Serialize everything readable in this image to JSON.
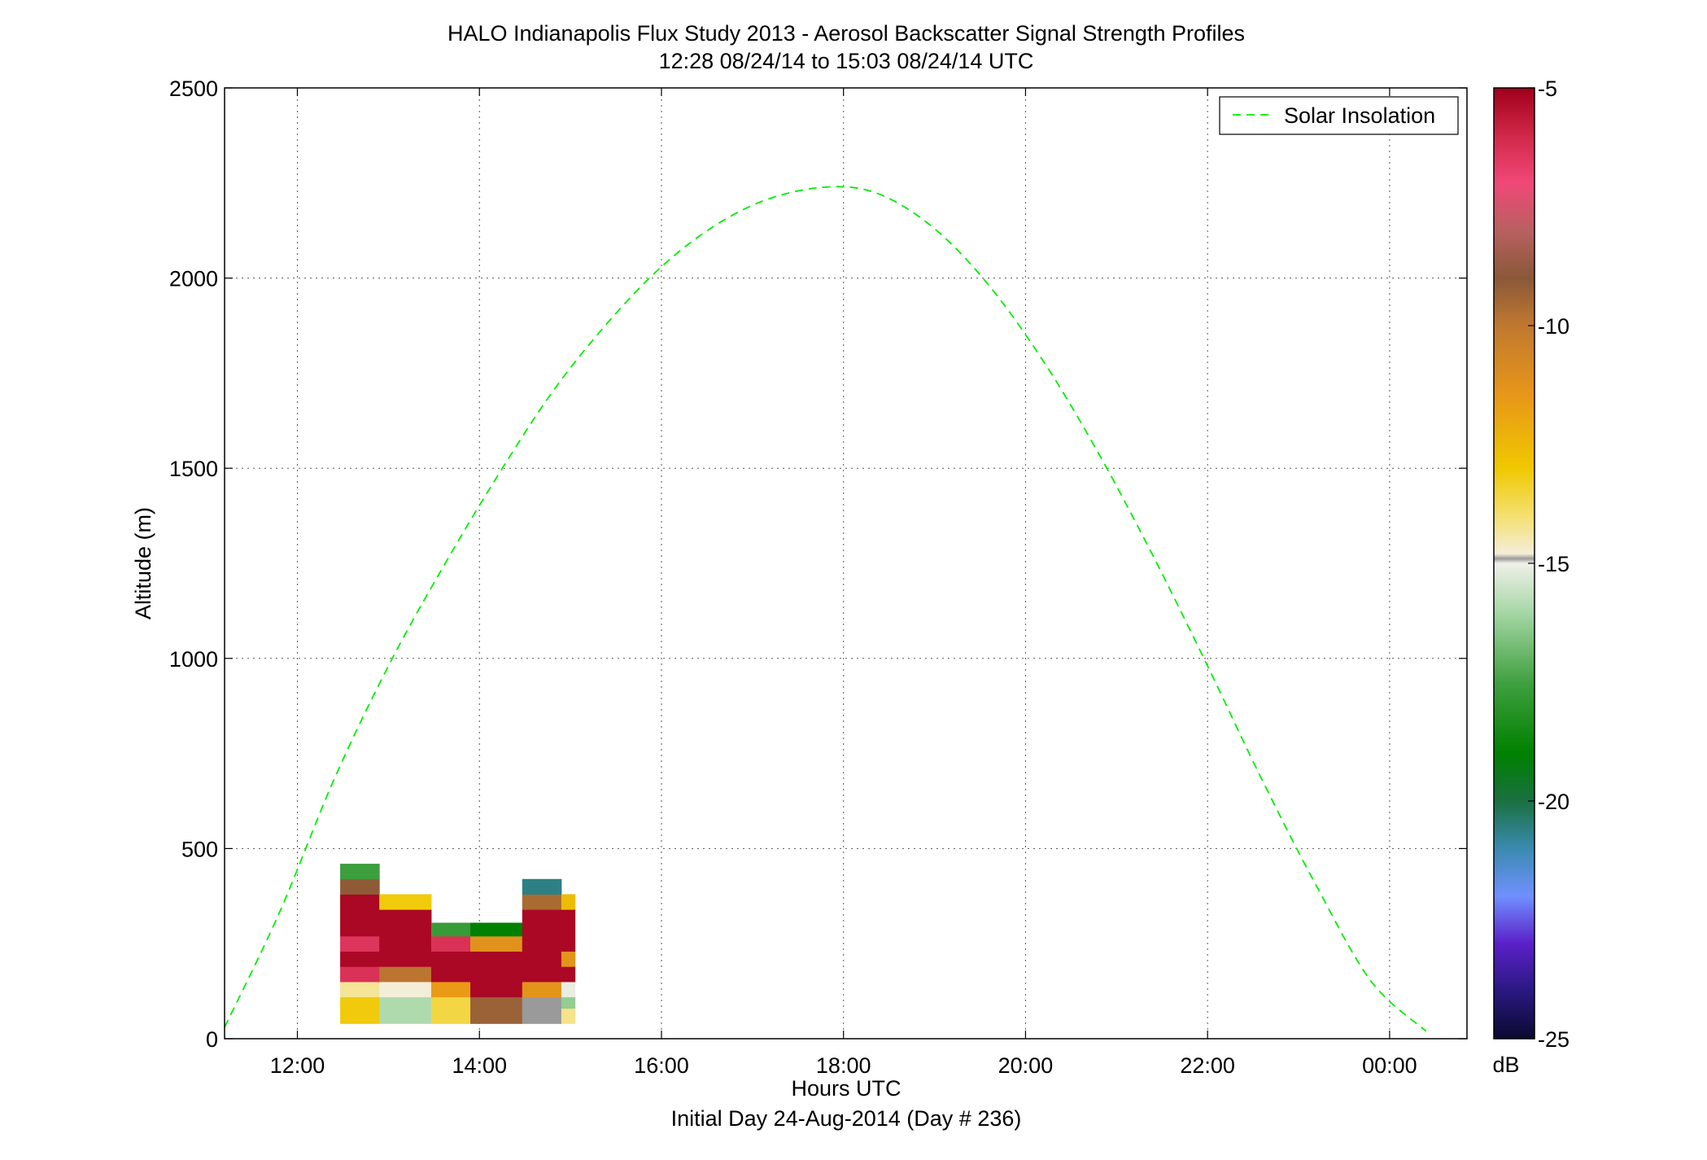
{
  "chart_data": {
    "type": "heatmap",
    "title": "HALO Indianapolis Flux Study 2013 - Aerosol Backscatter Signal Strength Profiles",
    "subtitle": "12:28 08/24/14 to 15:03 08/24/14  UTC",
    "xlabel": "Hours UTC",
    "xlabel2": "Initial Day 24-Aug-2014 (Day # 236)",
    "ylabel": "Altitude (m)",
    "xlim": [
      11.2,
      24.85
    ],
    "ylim": [
      0,
      2500
    ],
    "x_ticks": [
      12,
      14,
      16,
      18,
      20,
      22,
      24
    ],
    "x_tick_labels": [
      "12:00",
      "14:00",
      "16:00",
      "18:00",
      "20:00",
      "22:00",
      "00:00"
    ],
    "y_ticks": [
      0,
      500,
      1000,
      1500,
      2000,
      2500
    ],
    "y_tick_labels": [
      "0",
      "500",
      "1000",
      "1500",
      "2000",
      "2500"
    ],
    "grid": true,
    "legend": {
      "placement": "top-right",
      "entries": [
        "Solar Insolation"
      ]
    },
    "colorbar": {
      "label": "dB",
      "range": [
        -25,
        -5
      ],
      "ticks": [
        -5,
        -10,
        -15,
        -20,
        -25
      ],
      "tick_labels": [
        "-5",
        "-10",
        "-15",
        "-20",
        "-25"
      ],
      "stops": [
        {
          "v": -25,
          "c": "#0a0a30"
        },
        {
          "v": -24,
          "c": "#2a1880"
        },
        {
          "v": -23,
          "c": "#5a20c8"
        },
        {
          "v": -22,
          "c": "#7090ff"
        },
        {
          "v": -21,
          "c": "#3a8ab0"
        },
        {
          "v": -20,
          "c": "#1a7040"
        },
        {
          "v": -19,
          "c": "#008000"
        },
        {
          "v": -17.5,
          "c": "#40a040"
        },
        {
          "v": -16,
          "c": "#a8d8a8"
        },
        {
          "v": -15,
          "c": "#f0f0e8"
        },
        {
          "v": -14.9,
          "c": "#9a9a9a"
        },
        {
          "v": -14.8,
          "c": "#f4eed8"
        },
        {
          "v": -14,
          "c": "#f4e070"
        },
        {
          "v": -13,
          "c": "#f0c800"
        },
        {
          "v": -11.5,
          "c": "#e89818"
        },
        {
          "v": -10,
          "c": "#c07830"
        },
        {
          "v": -9,
          "c": "#8a5838"
        },
        {
          "v": -8,
          "c": "#b86060"
        },
        {
          "v": -7,
          "c": "#f04878"
        },
        {
          "v": -6,
          "c": "#d02848"
        },
        {
          "v": -5,
          "c": "#a0001c"
        }
      ]
    },
    "series": [
      {
        "name": "Solar Insolation",
        "type": "line",
        "style": "dashed",
        "color": "#00ee00",
        "x": [
          11.2,
          11.8,
          12.4,
          13.0,
          13.6,
          14.2,
          14.8,
          15.4,
          16.0,
          16.6,
          17.2,
          17.85,
          18.4,
          19.0,
          19.6,
          20.2,
          20.8,
          21.4,
          22.0,
          22.6,
          23.2,
          23.8,
          24.4
        ],
        "y": [
          30,
          330,
          680,
          980,
          1240,
          1480,
          1700,
          1880,
          2030,
          2140,
          2210,
          2240,
          2220,
          2130,
          1980,
          1780,
          1540,
          1270,
          980,
          680,
          400,
          150,
          20
        ]
      }
    ],
    "cells": [
      {
        "x0": 12.47,
        "x1": 12.9,
        "y0": 40,
        "y1": 110,
        "v": -13.1
      },
      {
        "x0": 12.47,
        "x1": 12.9,
        "y0": 110,
        "y1": 150,
        "v": -14.3
      },
      {
        "x0": 12.47,
        "x1": 12.9,
        "y0": 150,
        "y1": 190,
        "v": -6.3
      },
      {
        "x0": 12.47,
        "x1": 12.9,
        "y0": 190,
        "y1": 230,
        "v": -5.2
      },
      {
        "x0": 12.47,
        "x1": 12.9,
        "y0": 230,
        "y1": 270,
        "v": -6.4
      },
      {
        "x0": 12.47,
        "x1": 12.9,
        "y0": 270,
        "y1": 380,
        "v": -5.2
      },
      {
        "x0": 12.47,
        "x1": 12.9,
        "y0": 380,
        "y1": 420,
        "v": -9.1
      },
      {
        "x0": 12.47,
        "x1": 12.9,
        "y0": 420,
        "y1": 460,
        "v": -17.6
      },
      {
        "x0": 12.9,
        "x1": 13.47,
        "y0": 40,
        "y1": 110,
        "v": -15.9
      },
      {
        "x0": 12.9,
        "x1": 13.47,
        "y0": 110,
        "y1": 150,
        "v": -14.8
      },
      {
        "x0": 12.9,
        "x1": 13.47,
        "y0": 150,
        "y1": 190,
        "v": -9.9
      },
      {
        "x0": 12.9,
        "x1": 13.47,
        "y0": 190,
        "y1": 340,
        "v": -5.2
      },
      {
        "x0": 12.9,
        "x1": 13.47,
        "y0": 340,
        "y1": 380,
        "v": -13.1
      },
      {
        "x0": 13.47,
        "x1": 13.9,
        "y0": 40,
        "y1": 110,
        "v": -13.6
      },
      {
        "x0": 13.47,
        "x1": 13.9,
        "y0": 110,
        "y1": 150,
        "v": -11.6
      },
      {
        "x0": 13.47,
        "x1": 13.9,
        "y0": 150,
        "y1": 230,
        "v": -5.2
      },
      {
        "x0": 13.47,
        "x1": 13.9,
        "y0": 230,
        "y1": 270,
        "v": -6.3
      },
      {
        "x0": 13.47,
        "x1": 13.9,
        "y0": 270,
        "y1": 305,
        "v": -17.7
      },
      {
        "x0": 13.9,
        "x1": 14.47,
        "y0": 40,
        "y1": 110,
        "v": -9.3
      },
      {
        "x0": 13.9,
        "x1": 14.47,
        "y0": 110,
        "y1": 230,
        "v": -5.2
      },
      {
        "x0": 13.9,
        "x1": 14.47,
        "y0": 230,
        "y1": 270,
        "v": -11.2
      },
      {
        "x0": 13.9,
        "x1": 14.47,
        "y0": 270,
        "y1": 305,
        "v": -19.0
      },
      {
        "x0": 14.47,
        "x1": 14.9,
        "y0": 40,
        "y1": 110,
        "v": -14.9
      },
      {
        "x0": 14.47,
        "x1": 14.9,
        "y0": 110,
        "y1": 150,
        "v": -11.3
      },
      {
        "x0": 14.47,
        "x1": 14.9,
        "y0": 150,
        "y1": 340,
        "v": -5.2
      },
      {
        "x0": 14.47,
        "x1": 14.9,
        "y0": 340,
        "y1": 380,
        "v": -9.6
      },
      {
        "x0": 14.47,
        "x1": 14.9,
        "y0": 380,
        "y1": 420,
        "v": -20.6
      },
      {
        "x0": 14.9,
        "x1": 15.05,
        "y0": 40,
        "y1": 80,
        "v": -14.2
      },
      {
        "x0": 14.9,
        "x1": 15.05,
        "y0": 80,
        "y1": 110,
        "v": -16.3
      },
      {
        "x0": 14.9,
        "x1": 15.05,
        "y0": 110,
        "y1": 150,
        "v": -15.1
      },
      {
        "x0": 14.9,
        "x1": 15.05,
        "y0": 150,
        "y1": 190,
        "v": -5.2
      },
      {
        "x0": 14.9,
        "x1": 15.05,
        "y0": 190,
        "y1": 230,
        "v": -11.3
      },
      {
        "x0": 14.9,
        "x1": 15.05,
        "y0": 230,
        "y1": 340,
        "v": -5.2
      },
      {
        "x0": 14.9,
        "x1": 15.05,
        "y0": 340,
        "y1": 380,
        "v": -12.6
      }
    ]
  }
}
